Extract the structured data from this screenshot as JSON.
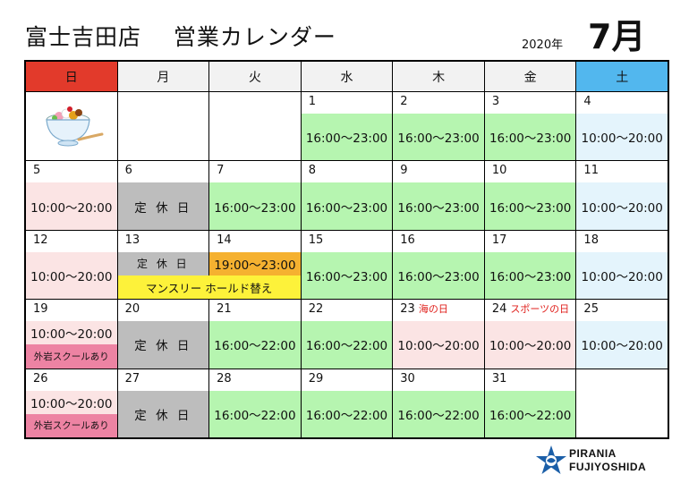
{
  "header": {
    "store": "富士吉田店",
    "subtitle": "営業カレンダー",
    "year": "2020年",
    "month": "7月"
  },
  "weekdays": [
    "日",
    "月",
    "火",
    "水",
    "木",
    "金",
    "土"
  ],
  "colors": {
    "sunday": "#e23a2b",
    "saturday": "#52b7ee",
    "weekday_open": "#b6f5b0",
    "weekend_open": "#fbe4e4",
    "closed": "#bdbdbd",
    "special": "#f5b130",
    "school": "#ed83a3",
    "notice": "#fdf23a"
  },
  "bowl_icon": "dessert-bowl-icon",
  "days": {
    "d1": "1",
    "d2": "2",
    "d3": "3",
    "d4": "4",
    "d5": "5",
    "d6": "6",
    "d7": "7",
    "d8": "8",
    "d9": "9",
    "d10": "10",
    "d11": "11",
    "d12": "12",
    "d13": "13",
    "d14": "14",
    "d15": "15",
    "d16": "16",
    "d17": "17",
    "d18": "18",
    "d19": "19",
    "d20": "20",
    "d21": "21",
    "d22": "22",
    "d23": "23",
    "d24": "24",
    "d25": "25",
    "d26": "26",
    "d27": "27",
    "d28": "28",
    "d29": "29",
    "d30": "30",
    "d31": "31"
  },
  "holidays": {
    "d23": "海の日",
    "d24": "スポーツの日"
  },
  "hours": {
    "late": "16:00～23:00",
    "late22": "16:00～22:00",
    "day": "10:00～20:00",
    "special14": "19:00～23:00",
    "closed": "定 休 日"
  },
  "notes": {
    "monthly_hold": "マンスリー ホールド替え",
    "outdoor_school": "外岩スクールあり"
  },
  "logo": {
    "line1": "PIRANIA",
    "line2": "FUJIYOSHIDA"
  }
}
